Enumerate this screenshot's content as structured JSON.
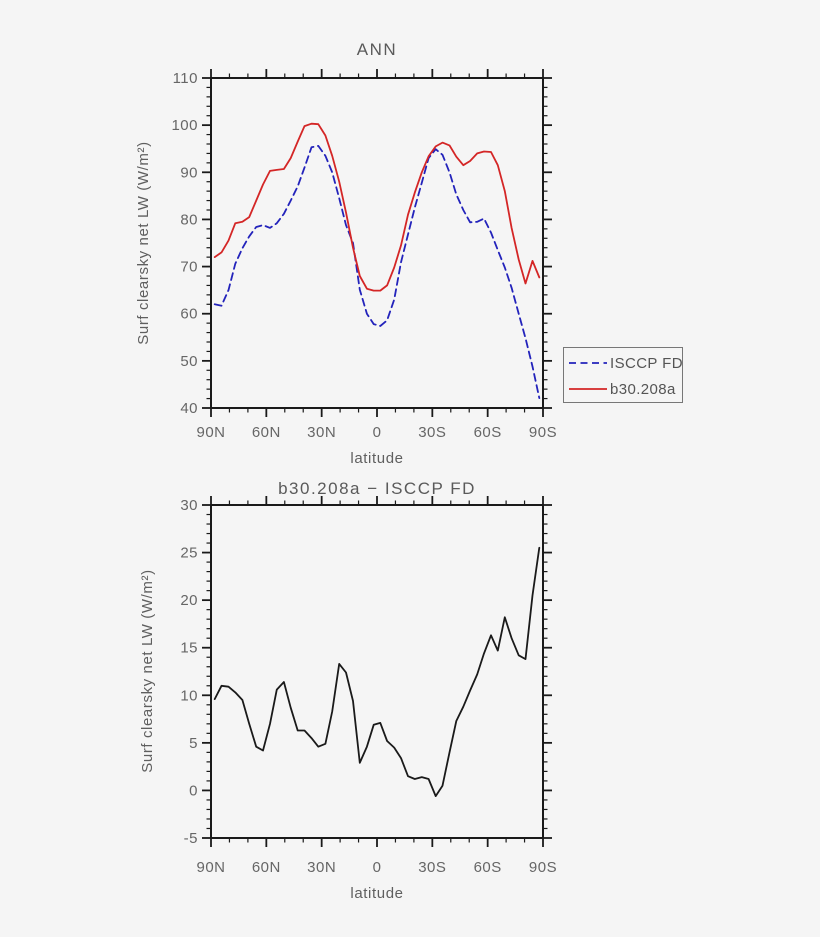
{
  "page": {
    "background": "#f5f5f5"
  },
  "colors": {
    "axis": "#1a1a1a",
    "tick_label": "#666666",
    "title": "#5a5a5a",
    "blue": "#2323bb",
    "red": "#d42626",
    "black": "#1a1a1a",
    "legend_border": "#777777"
  },
  "chart_data": [
    {
      "type": "line",
      "title": "ANN",
      "xlabel": "latitude",
      "ylabel": "Surf clearsky net LW (W/m²)",
      "xlim": [
        90,
        -90
      ],
      "ylim": [
        40,
        110
      ],
      "xtick_major": 30,
      "xtick_minor": 10,
      "ytick_major": 10,
      "ytick_minor": 2,
      "grid": false,
      "xtick_labels": [
        "90N",
        "60N",
        "30N",
        "0",
        "30S",
        "60S",
        "90S"
      ],
      "ytick_labels": [
        "40",
        "50",
        "60",
        "70",
        "80",
        "90",
        "100",
        "110"
      ],
      "legend": {
        "position": "outside-right",
        "entries": [
          {
            "label": "ISCCP FD",
            "color_key": "blue",
            "style": "dashed"
          },
          {
            "label": "b30.208a",
            "color_key": "red",
            "style": "solid"
          }
        ]
      },
      "x_lat": [
        88,
        84.3,
        80.5,
        76.8,
        73,
        69.3,
        65.5,
        61.8,
        58,
        54.3,
        50.5,
        46.8,
        43,
        39.3,
        35.5,
        31.8,
        28,
        24.3,
        20.5,
        16.8,
        13,
        9.3,
        5.5,
        1.8,
        -1.8,
        -5.5,
        -9.3,
        -13,
        -16.8,
        -20.5,
        -24.3,
        -28,
        -31.8,
        -35.5,
        -39.3,
        -43,
        -46.8,
        -50.5,
        -54.3,
        -58,
        -61.8,
        -65.5,
        -69.3,
        -73,
        -76.8,
        -80.5,
        -84.3,
        -88
      ],
      "series": [
        {
          "name": "ISCCP FD",
          "style": "dashed",
          "color_key": "blue",
          "values": [
            62.0,
            61.7,
            65.0,
            70.6,
            73.9,
            76.4,
            78.4,
            78.8,
            78.2,
            79.2,
            81.2,
            84.0,
            87.0,
            91.0,
            95.3,
            95.6,
            93.5,
            90.0,
            84.5,
            78.8,
            75.0,
            65.1,
            60.0,
            57.8,
            57.4,
            58.6,
            63.0,
            70.9,
            76.8,
            82.5,
            87.8,
            93.0,
            94.9,
            93.7,
            90.0,
            85.3,
            82.0,
            79.4,
            79.5,
            80.2,
            77.2,
            73.5,
            69.8,
            65.5,
            60.0,
            54.8,
            48.8,
            42.1
          ]
        },
        {
          "name": "b30.208a",
          "style": "solid",
          "color_key": "red",
          "values": [
            72.0,
            73.0,
            75.5,
            79.2,
            79.5,
            80.5,
            84.0,
            87.4,
            90.3,
            90.5,
            90.7,
            93.0,
            96.5,
            99.8,
            100.3,
            100.2,
            97.8,
            93.5,
            88.0,
            81.5,
            74.0,
            68.0,
            65.3,
            64.9,
            64.9,
            66.0,
            69.8,
            74.5,
            81.0,
            85.7,
            90.0,
            93.4,
            95.5,
            96.3,
            95.7,
            93.3,
            91.5,
            92.4,
            94.0,
            94.4,
            94.3,
            91.5,
            86.0,
            78.2,
            71.5,
            66.4,
            71.2,
            67.7
          ]
        }
      ]
    },
    {
      "type": "line",
      "title": "b30.208a − ISCCP FD",
      "xlabel": "latitude",
      "ylabel": "Surf clearsky net LW (W/m²)",
      "xlim": [
        90,
        -90
      ],
      "ylim": [
        -5,
        30
      ],
      "xtick_major": 30,
      "xtick_minor": 10,
      "ytick_major": 5,
      "ytick_minor": 1,
      "grid": false,
      "xtick_labels": [
        "90N",
        "60N",
        "30N",
        "0",
        "30S",
        "60S",
        "90S"
      ],
      "ytick_labels": [
        "-5",
        "0",
        "5",
        "10",
        "15",
        "20",
        "25",
        "30"
      ],
      "x_lat": [
        88,
        84.3,
        80.5,
        76.8,
        73,
        69.3,
        65.5,
        61.8,
        58,
        54.3,
        50.5,
        46.8,
        43,
        39.3,
        35.5,
        31.8,
        28,
        24.3,
        20.5,
        16.8,
        13,
        9.3,
        5.5,
        1.8,
        -1.8,
        -5.5,
        -9.3,
        -13,
        -16.8,
        -20.5,
        -24.3,
        -28,
        -31.8,
        -35.5,
        -39.3,
        -43,
        -46.8,
        -50.5,
        -54.3,
        -58,
        -61.8,
        -65.5,
        -69.3,
        -73,
        -76.8,
        -80.5,
        -84.3,
        -88
      ],
      "series": [
        {
          "name": "b30.208a − ISCCP FD",
          "style": "solid",
          "color_key": "black",
          "values": [
            9.6,
            11.0,
            10.9,
            10.3,
            9.5,
            7.0,
            4.6,
            4.2,
            7.0,
            10.6,
            11.4,
            8.7,
            6.3,
            6.3,
            5.5,
            4.6,
            4.9,
            8.3,
            13.3,
            12.4,
            9.4,
            2.9,
            4.6,
            6.9,
            7.1,
            5.2,
            4.5,
            3.4,
            1.5,
            1.2,
            1.4,
            1.2,
            -0.6,
            0.5,
            4.0,
            7.3,
            8.8,
            10.5,
            12.2,
            14.4,
            16.3,
            14.7,
            18.2,
            16.0,
            14.2,
            13.8,
            20.5,
            25.5
          ]
        }
      ]
    }
  ]
}
